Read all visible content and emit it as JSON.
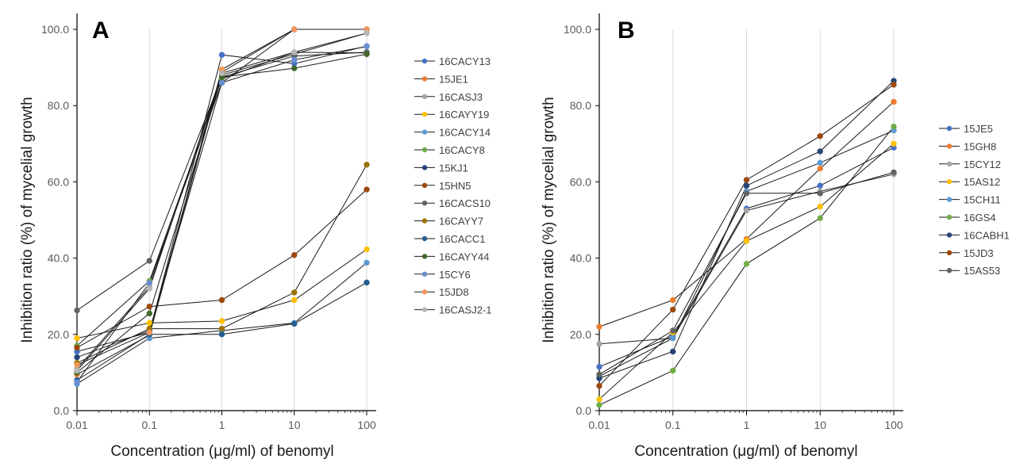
{
  "chart_data": [
    {
      "panel_label": "A",
      "type": "line",
      "x_scale": "log",
      "x": [
        0.01,
        0.1,
        1,
        10,
        100
      ],
      "x_tick_labels": [
        "0.01",
        "0.1",
        "1",
        "10",
        "100"
      ],
      "ylim": [
        0,
        100
      ],
      "y_tick_labels": [
        "0.0",
        "20.0",
        "40.0",
        "60.0",
        "80.0",
        "100.0"
      ],
      "xlabel": "Concentration (μg/ml) of benomyl",
      "ylabel": "Inhibition ratio (%) of mycelial growth",
      "grid": "vertical",
      "legend_position": "right",
      "series": [
        {
          "name": "16CACY13",
          "color": "#4472C4",
          "values": [
            15.5,
            20.5,
            93.3,
            91.0,
            95.6
          ]
        },
        {
          "name": "15JE1",
          "color": "#ED7D31",
          "values": [
            9.5,
            19.8,
            88.8,
            100.0,
            100.0
          ]
        },
        {
          "name": "16CASJ3",
          "color": "#A5A5A5",
          "values": [
            11.0,
            32.5,
            88.0,
            93.5,
            99.0
          ]
        },
        {
          "name": "16CAYY19",
          "color": "#FFC000",
          "values": [
            19.0,
            23.0,
            23.5,
            29.0,
            42.3
          ]
        },
        {
          "name": "16CACY14",
          "color": "#5B9BD5",
          "values": [
            7.0,
            19.0,
            21.0,
            23.0,
            38.8
          ]
        },
        {
          "name": "16CACY8",
          "color": "#70AD47",
          "values": [
            17.0,
            34.0,
            87.0,
            94.0,
            93.8
          ]
        },
        {
          "name": "15KJ1",
          "color": "#264478",
          "values": [
            14.0,
            21.0,
            86.0,
            100.0,
            100.0
          ]
        },
        {
          "name": "15HN5",
          "color": "#9E480E",
          "values": [
            16.5,
            27.3,
            29.0,
            40.8,
            58.0
          ]
        },
        {
          "name": "16CACS10",
          "color": "#636363",
          "values": [
            26.3,
            39.3,
            87.5,
            93.0,
            94.0
          ]
        },
        {
          "name": "16CAYY7",
          "color": "#997300",
          "values": [
            12.5,
            21.5,
            21.5,
            31.0,
            64.5
          ]
        },
        {
          "name": "16CACC1",
          "color": "#255E91",
          "values": [
            8.0,
            20.0,
            20.0,
            22.8,
            33.6
          ]
        },
        {
          "name": "16CAYY44",
          "color": "#43682B",
          "values": [
            10.0,
            25.5,
            87.5,
            89.8,
            93.5
          ]
        },
        {
          "name": "15CY6",
          "color": "#698ED0",
          "values": [
            7.5,
            33.5,
            86.0,
            92.0,
            95.5
          ]
        },
        {
          "name": "15JD8",
          "color": "#F1975A",
          "values": [
            12.0,
            20.5,
            89.5,
            100.0,
            100.0
          ]
        },
        {
          "name": "16CASJ2-1",
          "color": "#B7B7B7",
          "values": [
            10.5,
            32.0,
            88.5,
            94.0,
            99.0
          ]
        }
      ]
    },
    {
      "panel_label": "B",
      "type": "line",
      "x_scale": "log",
      "x": [
        0.01,
        0.1,
        1,
        10,
        100
      ],
      "x_tick_labels": [
        "0.01",
        "0.1",
        "1",
        "10",
        "100"
      ],
      "ylim": [
        0,
        100
      ],
      "y_tick_labels": [
        "0.0",
        "20.0",
        "40.0",
        "60.0",
        "80.0",
        "100.0"
      ],
      "xlabel": "Concentration (μg/ml) of benomyl",
      "ylabel": "Inhibition ratio (%) of mycelial growth",
      "grid": "vertical",
      "legend_position": "right",
      "series": [
        {
          "name": "15JE5",
          "color": "#4472C4",
          "values": [
            11.5,
            19.5,
            53.0,
            59.0,
            69.0
          ]
        },
        {
          "name": "15GH8",
          "color": "#ED7D31",
          "values": [
            22.0,
            29.0,
            45.0,
            63.5,
            81.0
          ]
        },
        {
          "name": "15CY12",
          "color": "#A5A5A5",
          "values": [
            17.5,
            19.0,
            52.5,
            57.5,
            62.0
          ]
        },
        {
          "name": "15AS12",
          "color": "#FFC000",
          "values": [
            3.0,
            20.5,
            44.5,
            53.5,
            70.0
          ]
        },
        {
          "name": "15CH11",
          "color": "#5B9BD5",
          "values": [
            9.0,
            19.0,
            57.5,
            65.0,
            73.5
          ]
        },
        {
          "name": "16GS4",
          "color": "#70AD47",
          "values": [
            1.5,
            10.5,
            38.5,
            50.5,
            74.5
          ]
        },
        {
          "name": "16CABH1",
          "color": "#264478",
          "values": [
            8.5,
            15.5,
            59.0,
            68.0,
            86.5
          ]
        },
        {
          "name": "15JD3",
          "color": "#9E480E",
          "values": [
            6.5,
            26.5,
            60.5,
            72.0,
            85.5
          ]
        },
        {
          "name": "15AS53",
          "color": "#636363",
          "values": [
            9.5,
            21.0,
            57.0,
            57.0,
            62.5
          ]
        }
      ]
    }
  ]
}
